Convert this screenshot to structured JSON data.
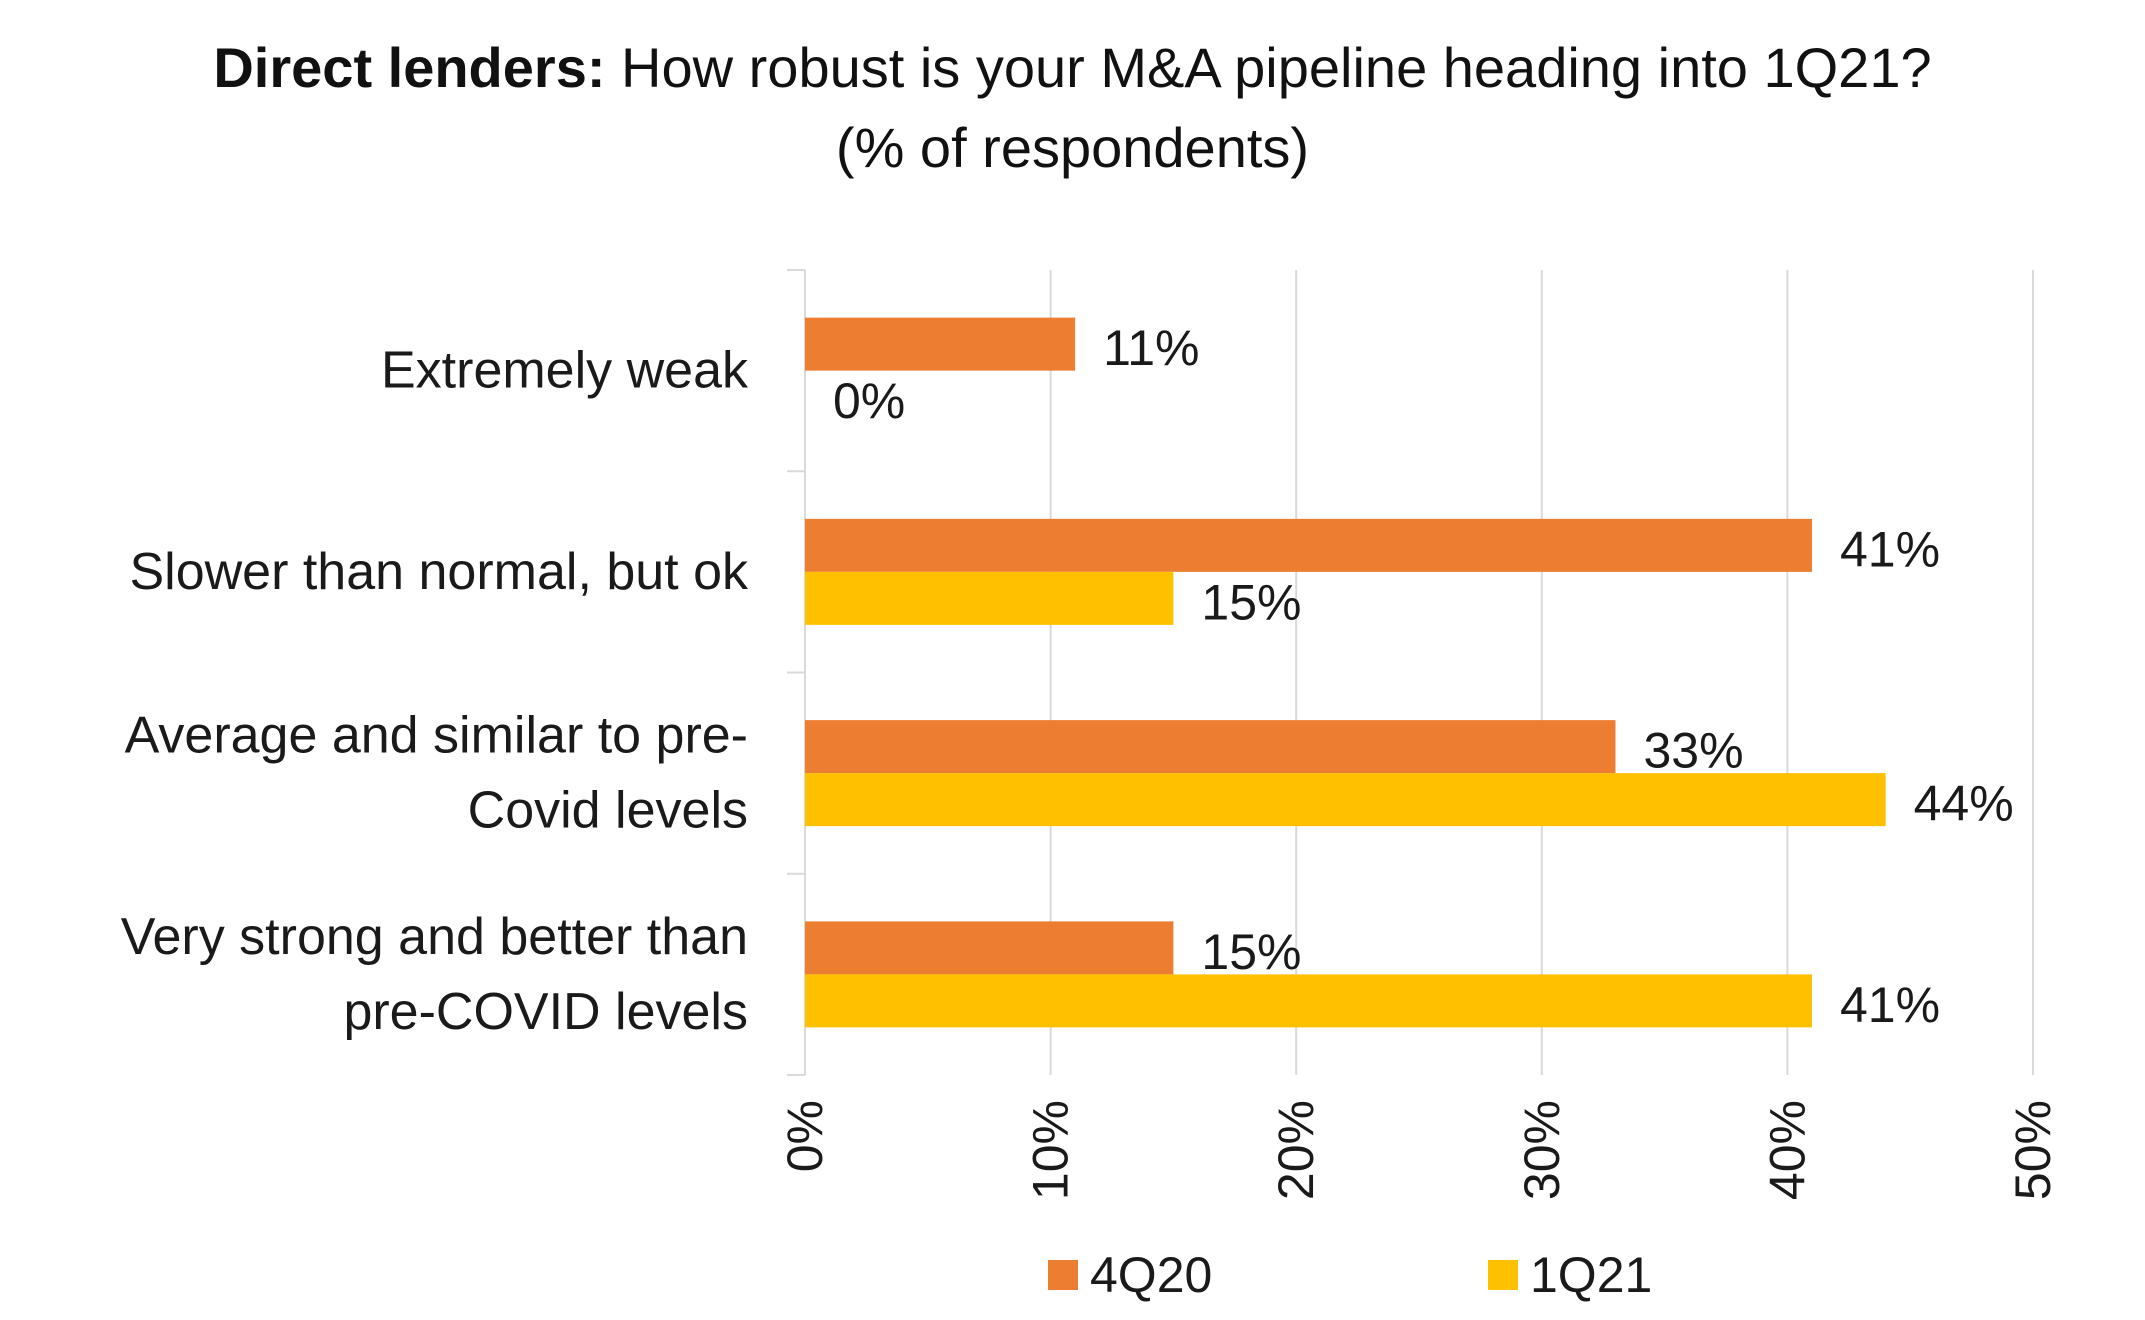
{
  "title": {
    "bold": "Direct lenders:",
    "rest": " How robust is your M&A pipeline heading into 1Q21?",
    "line2": "(% of respondents)"
  },
  "chart_data": {
    "type": "bar",
    "orientation": "horizontal",
    "title": "Direct lenders: How robust is your M&A pipeline heading into 1Q21? (% of respondents)",
    "categories": [
      [
        "Extremely weak"
      ],
      [
        "Slower than normal, but ok"
      ],
      [
        "Average and similar to pre-",
        "Covid levels"
      ],
      [
        "Very strong and better than",
        "pre-COVID levels"
      ]
    ],
    "series": [
      {
        "name": "4Q20",
        "color": "#ED7D31",
        "values": [
          11,
          41,
          33,
          15
        ]
      },
      {
        "name": "1Q21",
        "color": "#FFC000",
        "values": [
          0,
          15,
          44,
          41
        ]
      }
    ],
    "xlim": [
      0,
      50
    ],
    "xticks": [
      0,
      10,
      20,
      30,
      40,
      50
    ],
    "tick_suffix": "%",
    "data_label_suffix": "%",
    "grid": true,
    "legend_position": "bottom"
  }
}
